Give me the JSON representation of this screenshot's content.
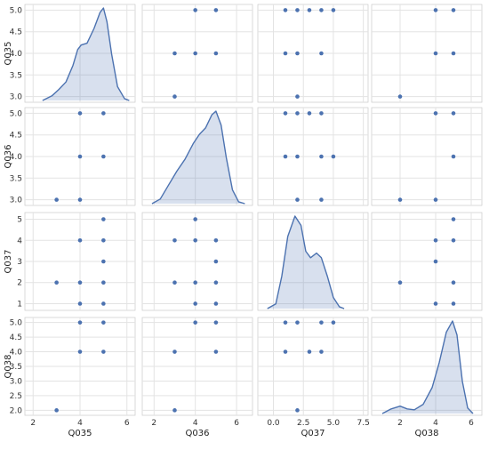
{
  "chart_data": {
    "type": "pairplot",
    "variables": [
      "Q035",
      "Q036",
      "Q037",
      "Q038"
    ],
    "grid": true,
    "colors": {
      "marker": "#4c72b0",
      "kde_fill": "#4c72b0",
      "kde_line": "#4c72b0",
      "panel_bg": "#ffffff",
      "grid": "#e3e3e3",
      "spine": "#d0d0d0"
    },
    "axes": {
      "Q035": {
        "xlim": [
          1.8,
          6.2
        ],
        "xticks": [
          2,
          4,
          6
        ],
        "xticklabels": [
          "2",
          "4",
          "6"
        ],
        "ylim": [
          2.95,
          5.05
        ],
        "yticks": [
          3.0,
          3.5,
          4.0,
          4.5,
          5.0
        ],
        "yticklabels": [
          "3.0",
          "3.5",
          "4.0",
          "4.5",
          "5.0"
        ]
      },
      "Q036": {
        "xlim": [
          1.6,
          6.6
        ],
        "xticks": [
          2,
          4,
          6
        ],
        "xticklabels": [
          "2",
          "4",
          "6"
        ],
        "ylim": [
          2.95,
          5.05
        ],
        "yticks": [
          3.0,
          3.5,
          4.0,
          4.5,
          5.0
        ],
        "yticklabels": [
          "3.0",
          "3.5",
          "4.0",
          "4.5",
          "5.0"
        ]
      },
      "Q037": {
        "xlim": [
          -1.0,
          7.6
        ],
        "xticks": [
          0.0,
          2.5,
          5.0,
          7.5
        ],
        "xticklabels": [
          "0.0",
          "2.5",
          "5.0",
          "7.5"
        ],
        "ylim": [
          0.85,
          5.15
        ],
        "yticks": [
          1,
          2,
          3,
          4,
          5
        ],
        "yticklabels": [
          "1",
          "2",
          "3",
          "4",
          "5"
        ]
      },
      "Q038": {
        "xlim": [
          0.6,
          6.4
        ],
        "xticks": [
          2,
          4,
          6
        ],
        "xticklabels": [
          "2",
          "4",
          "6"
        ],
        "ylim": [
          1.95,
          5.05
        ],
        "yticks": [
          2.0,
          2.5,
          3.0,
          3.5,
          4.0,
          4.5,
          5.0
        ],
        "yticklabels": [
          "2.0",
          "2.5",
          "3.0",
          "3.5",
          "4.0",
          "4.5",
          "5.0"
        ]
      }
    },
    "panels": [
      {
        "row": 0,
        "col": 0,
        "kind": "kde",
        "var": "Q035",
        "ymax": 1.0,
        "curve": [
          [
            2.4,
            0.0
          ],
          [
            2.8,
            0.05
          ],
          [
            3.1,
            0.12
          ],
          [
            3.4,
            0.2
          ],
          [
            3.7,
            0.38
          ],
          [
            3.9,
            0.55
          ],
          [
            4.05,
            0.6
          ],
          [
            4.3,
            0.62
          ],
          [
            4.6,
            0.78
          ],
          [
            4.85,
            0.95
          ],
          [
            5.0,
            1.0
          ],
          [
            5.15,
            0.85
          ],
          [
            5.35,
            0.5
          ],
          [
            5.6,
            0.15
          ],
          [
            5.9,
            0.02
          ],
          [
            6.1,
            0.0
          ]
        ]
      },
      {
        "row": 0,
        "col": 1,
        "kind": "scatter",
        "x": "Q036",
        "y": "Q035",
        "points": [
          [
            4,
            5
          ],
          [
            5,
            5
          ],
          [
            3,
            4
          ],
          [
            4,
            4
          ],
          [
            5,
            4
          ],
          [
            3,
            3
          ]
        ]
      },
      {
        "row": 0,
        "col": 2,
        "kind": "scatter",
        "x": "Q037",
        "y": "Q035",
        "points": [
          [
            1,
            5
          ],
          [
            2,
            5
          ],
          [
            3,
            5
          ],
          [
            4,
            5
          ],
          [
            5,
            5
          ],
          [
            1,
            4
          ],
          [
            2,
            4
          ],
          [
            4,
            4
          ],
          [
            2,
            3
          ]
        ]
      },
      {
        "row": 0,
        "col": 3,
        "kind": "scatter",
        "x": "Q038",
        "y": "Q035",
        "points": [
          [
            4,
            5
          ],
          [
            5,
            5
          ],
          [
            4,
            4
          ],
          [
            5,
            4
          ],
          [
            2,
            3
          ]
        ]
      },
      {
        "row": 1,
        "col": 0,
        "kind": "scatter",
        "x": "Q035",
        "y": "Q036",
        "points": [
          [
            4,
            5
          ],
          [
            5,
            5
          ],
          [
            4,
            4
          ],
          [
            5,
            4
          ],
          [
            3,
            3
          ],
          [
            4,
            3
          ]
        ]
      },
      {
        "row": 1,
        "col": 1,
        "kind": "kde",
        "var": "Q036",
        "ymax": 1.0,
        "curve": [
          [
            1.9,
            0.0
          ],
          [
            2.3,
            0.05
          ],
          [
            2.7,
            0.2
          ],
          [
            3.1,
            0.35
          ],
          [
            3.5,
            0.48
          ],
          [
            3.9,
            0.65
          ],
          [
            4.2,
            0.75
          ],
          [
            4.5,
            0.82
          ],
          [
            4.8,
            0.96
          ],
          [
            5.0,
            1.0
          ],
          [
            5.25,
            0.85
          ],
          [
            5.5,
            0.5
          ],
          [
            5.8,
            0.15
          ],
          [
            6.1,
            0.02
          ],
          [
            6.4,
            0.0
          ]
        ]
      },
      {
        "row": 1,
        "col": 2,
        "kind": "scatter",
        "x": "Q037",
        "y": "Q036",
        "points": [
          [
            1,
            5
          ],
          [
            2,
            5
          ],
          [
            3,
            5
          ],
          [
            4,
            5
          ],
          [
            1,
            4
          ],
          [
            2,
            4
          ],
          [
            4,
            4
          ],
          [
            5,
            4
          ],
          [
            2,
            3
          ],
          [
            4,
            3
          ]
        ]
      },
      {
        "row": 1,
        "col": 3,
        "kind": "scatter",
        "x": "Q038",
        "y": "Q036",
        "points": [
          [
            4,
            5
          ],
          [
            5,
            5
          ],
          [
            5,
            4
          ],
          [
            2,
            3
          ],
          [
            4,
            3
          ]
        ]
      },
      {
        "row": 2,
        "col": 0,
        "kind": "scatter",
        "x": "Q035",
        "y": "Q037",
        "points": [
          [
            5,
            5
          ],
          [
            4,
            4
          ],
          [
            5,
            4
          ],
          [
            5,
            3
          ],
          [
            3,
            2
          ],
          [
            4,
            2
          ],
          [
            5,
            2
          ],
          [
            4,
            1
          ],
          [
            5,
            1
          ]
        ]
      },
      {
        "row": 2,
        "col": 1,
        "kind": "scatter",
        "x": "Q036",
        "y": "Q037",
        "points": [
          [
            4,
            5
          ],
          [
            3,
            4
          ],
          [
            4,
            4
          ],
          [
            5,
            4
          ],
          [
            5,
            3
          ],
          [
            3,
            2
          ],
          [
            4,
            2
          ],
          [
            5,
            2
          ],
          [
            4,
            1
          ],
          [
            5,
            1
          ]
        ]
      },
      {
        "row": 2,
        "col": 2,
        "kind": "kde",
        "var": "Q037",
        "ymax": 1.0,
        "curve": [
          [
            -0.5,
            0.0
          ],
          [
            0.2,
            0.05
          ],
          [
            0.7,
            0.35
          ],
          [
            1.2,
            0.78
          ],
          [
            1.8,
            1.0
          ],
          [
            2.3,
            0.9
          ],
          [
            2.7,
            0.62
          ],
          [
            3.1,
            0.55
          ],
          [
            3.6,
            0.6
          ],
          [
            4.0,
            0.55
          ],
          [
            4.5,
            0.35
          ],
          [
            5.0,
            0.12
          ],
          [
            5.5,
            0.02
          ],
          [
            5.9,
            0.0
          ]
        ]
      },
      {
        "row": 2,
        "col": 3,
        "kind": "scatter",
        "x": "Q038",
        "y": "Q037",
        "points": [
          [
            5,
            5
          ],
          [
            4,
            4
          ],
          [
            5,
            4
          ],
          [
            4,
            3
          ],
          [
            2,
            2
          ],
          [
            5,
            2
          ],
          [
            4,
            1
          ],
          [
            5,
            1
          ]
        ]
      },
      {
        "row": 3,
        "col": 0,
        "kind": "scatter",
        "x": "Q035",
        "y": "Q038",
        "points": [
          [
            4,
            5
          ],
          [
            5,
            5
          ],
          [
            4,
            4
          ],
          [
            5,
            4
          ],
          [
            3,
            2
          ]
        ]
      },
      {
        "row": 3,
        "col": 1,
        "kind": "scatter",
        "x": "Q036",
        "y": "Q038",
        "points": [
          [
            4,
            5
          ],
          [
            5,
            5
          ],
          [
            3,
            4
          ],
          [
            5,
            4
          ],
          [
            3,
            2
          ]
        ]
      },
      {
        "row": 3,
        "col": 2,
        "kind": "scatter",
        "x": "Q037",
        "y": "Q038",
        "points": [
          [
            1,
            5
          ],
          [
            2,
            5
          ],
          [
            4,
            5
          ],
          [
            5,
            5
          ],
          [
            1,
            4
          ],
          [
            3,
            4
          ],
          [
            4,
            4
          ],
          [
            2,
            2
          ]
        ]
      },
      {
        "row": 3,
        "col": 3,
        "kind": "kde",
        "var": "Q038",
        "ymax": 1.0,
        "curve": [
          [
            1.0,
            0.0
          ],
          [
            1.5,
            0.05
          ],
          [
            2.0,
            0.08
          ],
          [
            2.4,
            0.05
          ],
          [
            2.8,
            0.04
          ],
          [
            3.3,
            0.1
          ],
          [
            3.8,
            0.28
          ],
          [
            4.2,
            0.55
          ],
          [
            4.6,
            0.88
          ],
          [
            4.95,
            1.0
          ],
          [
            5.2,
            0.85
          ],
          [
            5.5,
            0.35
          ],
          [
            5.8,
            0.06
          ],
          [
            6.1,
            0.0
          ]
        ]
      }
    ]
  }
}
